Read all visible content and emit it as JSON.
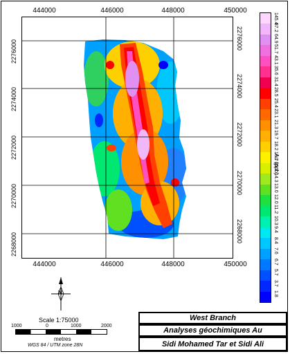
{
  "map": {
    "x_ticks": [
      "444000",
      "446000",
      "448000",
      "450000"
    ],
    "y_ticks_left": [
      "2276000",
      "2274000",
      "2272000",
      "2270000",
      "2268000"
    ],
    "y_ticks_right": [
      "2276000",
      "2274000",
      "2272000",
      "2270000",
      "2268000"
    ]
  },
  "legend": {
    "axis_title": "Au (ppb)",
    "labels": [
      "1.8",
      "3.7",
      "5.7",
      "6.7",
      "7.6",
      "8.4",
      "9.4",
      "10.3",
      "11.2",
      "12.0",
      "13.0",
      "14.3",
      "15.7",
      "16.7",
      "18.2",
      "19.7",
      "21.3",
      "23.1",
      "25.4",
      "28.5",
      "31.4",
      "35.6",
      "43.1",
      "51.7",
      "64.9",
      "87.2",
      "145.4"
    ],
    "colors": [
      "#0000ff",
      "#0028ff",
      "#0050ff",
      "#0078ff",
      "#00a0ff",
      "#00c8ff",
      "#00e8f0",
      "#00f0b0",
      "#00e870",
      "#20e040",
      "#60e020",
      "#a0e820",
      "#d8f000",
      "#fff000",
      "#ffd000",
      "#ffb000",
      "#ff9000",
      "#ff6a00",
      "#ff4000",
      "#ff0000",
      "#f00050",
      "#ff3090",
      "#ff50c0",
      "#f070e0",
      "#e090f0",
      "#f0b8f8",
      "#fcd8fc"
    ]
  },
  "scale": {
    "text": "Scale 1:75000",
    "ticks": [
      "1000",
      "0",
      "1000",
      "2000"
    ],
    "unit": "metres",
    "projection": "WGS 84 / UTM zone 28N"
  },
  "north_arrow": {
    "label": "N"
  },
  "title": {
    "line1": "West Branch",
    "line2": "Analyses géochimiques Au",
    "line3": "Sidi Mohamed Tar et Sidi Ali"
  }
}
